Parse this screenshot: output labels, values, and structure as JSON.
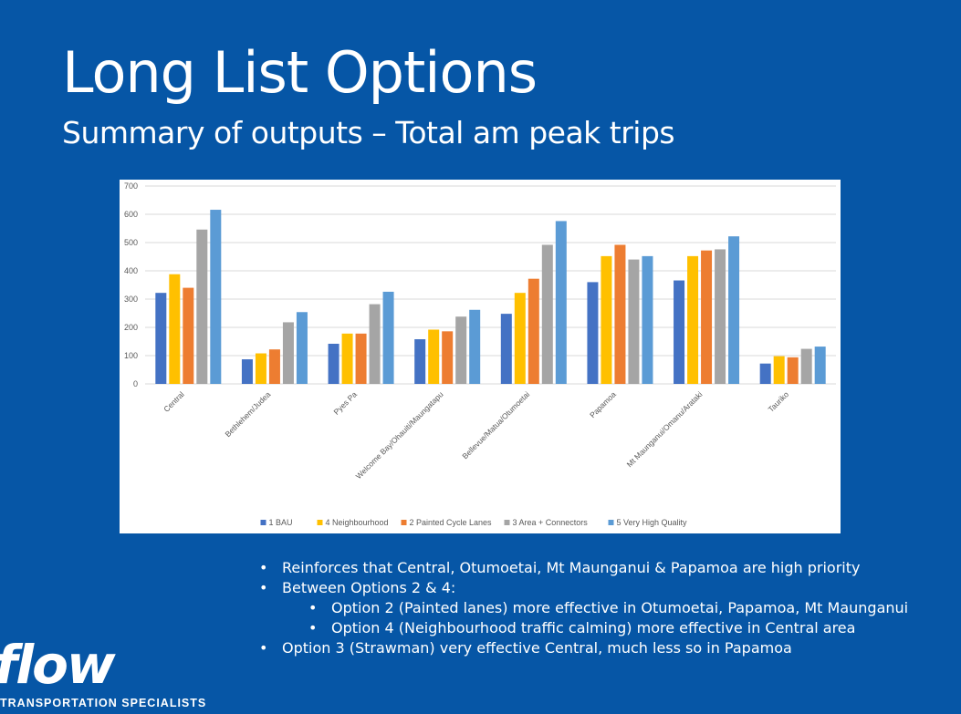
{
  "slide": {
    "title": "Long List Options",
    "subtitle": "Summary of outputs – Total am peak trips"
  },
  "bullets": [
    {
      "text": "Reinforces that Central, Otumoetai, Mt Maunganui & Papamoa are high priority",
      "level": 1
    },
    {
      "text": "Between Options 2 & 4:",
      "level": 1
    },
    {
      "text": "Option 2 (Painted lanes) more effective in Otumoetai, Papamoa, Mt Maunganui",
      "level": 2
    },
    {
      "text": "Option 4 (Neighbourhood traffic calming) more effective in Central area",
      "level": 2
    },
    {
      "text": "Option 3 (Strawman) very effective Central, much less so in Papamoa",
      "level": 1
    }
  ],
  "logo": {
    "word": "flow",
    "tagline": "TRANSPORTATION SPECIALISTS"
  },
  "chart_data": {
    "type": "bar",
    "categories": [
      "Central",
      "Bethlehem/Judea",
      "Pyes Pa",
      "Welcome Bay/Ohauiti/Maungatapu",
      "Bellevue/Matua/Otumoetai",
      "Papamoa",
      "Mt Maunganui/Omanu/Arataki",
      "Tauriko"
    ],
    "series": [
      {
        "name": "1 BAU",
        "color": "#4472c4",
        "values": [
          322,
          87,
          142,
          158,
          248,
          360,
          366,
          72
        ]
      },
      {
        "name": "4 Neighbourhood",
        "color": "#ffc000",
        "values": [
          388,
          108,
          178,
          192,
          322,
          452,
          452,
          98
        ]
      },
      {
        "name": "2 Painted Cycle Lanes",
        "color": "#ed7d31",
        "values": [
          340,
          122,
          178,
          186,
          372,
          492,
          472,
          94
        ]
      },
      {
        "name": "3 Area + Connectors",
        "color": "#a5a5a5",
        "values": [
          546,
          218,
          282,
          238,
          492,
          440,
          476,
          124
        ]
      },
      {
        "name": "5 Very High Quality",
        "color": "#5b9bd5",
        "values": [
          616,
          254,
          326,
          262,
          576,
          452,
          522,
          132
        ]
      }
    ],
    "ylim": [
      0,
      700
    ],
    "yticks": [
      0,
      100,
      200,
      300,
      400,
      500,
      600,
      700
    ],
    "grid": true,
    "legend_position": "bottom"
  }
}
